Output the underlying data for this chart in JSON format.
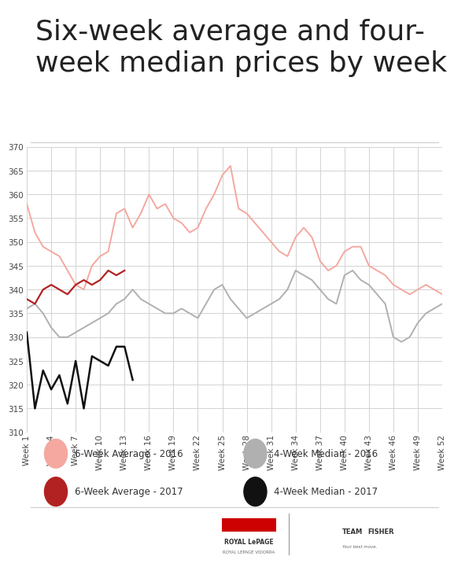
{
  "title": "Six-week average and four-\nweek median prices by week",
  "title_fontsize": 26,
  "ylim": [
    310,
    370
  ],
  "yticks": [
    310,
    315,
    320,
    325,
    330,
    335,
    340,
    345,
    350,
    355,
    360,
    365,
    370
  ],
  "xtick_labels": [
    "Week 1",
    "Week 4",
    "Week 7",
    "Week 10",
    "Week 13",
    "Week 16",
    "Week 19",
    "Week 22",
    "Week 25",
    "Week 28",
    "Week 31",
    "Week 34",
    "Week 37",
    "Week 40",
    "Week 43",
    "Week 46",
    "Week 49",
    "Week 52"
  ],
  "xtick_positions": [
    1,
    4,
    7,
    10,
    13,
    16,
    19,
    22,
    25,
    28,
    31,
    34,
    37,
    40,
    43,
    46,
    49,
    52
  ],
  "color_avg_2016": "#f4a8a0",
  "color_med_2016": "#b0b0b0",
  "color_avg_2017": "#b22222",
  "color_med_2017": "#111111",
  "legend_labels": [
    "6-Week Average - 2016",
    "4-Week Median - 2016",
    "6-Week Average - 2017",
    "4-Week Median - 2017"
  ],
  "avg_2016": [
    358,
    352,
    349,
    348,
    347,
    344,
    341,
    340,
    345,
    347,
    348,
    356,
    357,
    353,
    356,
    360,
    357,
    358,
    355,
    354,
    352,
    353,
    357,
    360,
    364,
    366,
    357,
    356,
    354,
    352,
    350,
    348,
    347,
    351,
    353,
    351,
    346,
    344,
    345,
    348,
    349,
    349,
    345,
    344,
    343,
    341,
    340,
    339,
    340,
    341,
    340,
    339
  ],
  "med_2016": [
    336,
    337,
    335,
    332,
    330,
    330,
    331,
    332,
    333,
    334,
    335,
    337,
    338,
    340,
    338,
    337,
    336,
    335,
    335,
    336,
    335,
    334,
    337,
    340,
    341,
    338,
    336,
    334,
    335,
    336,
    337,
    338,
    340,
    344,
    343,
    342,
    340,
    338,
    337,
    343,
    344,
    342,
    341,
    339,
    337,
    330,
    329,
    330,
    333,
    335,
    336,
    337
  ],
  "avg_2017": [
    338,
    337,
    340,
    341,
    340,
    339,
    341,
    342,
    341,
    342,
    344,
    343,
    344,
    null,
    null,
    null,
    null,
    null,
    null,
    null,
    null,
    null,
    null,
    null,
    null,
    null,
    null,
    null,
    null,
    null,
    null,
    null,
    null,
    null,
    null,
    null,
    null,
    null,
    null,
    null,
    null,
    null,
    null,
    null,
    null,
    null,
    null,
    null,
    null,
    null,
    null,
    null
  ],
  "med_2017": [
    331,
    315,
    323,
    319,
    322,
    316,
    325,
    315,
    326,
    325,
    324,
    328,
    328,
    321,
    null,
    null,
    null,
    null,
    null,
    null,
    null,
    null,
    null,
    null,
    null,
    null,
    null,
    null,
    null,
    null,
    null,
    null,
    null,
    null,
    null,
    null,
    null,
    null,
    null,
    null,
    null,
    null,
    null,
    null,
    null,
    null,
    null,
    null,
    null,
    null,
    null,
    null
  ],
  "background_color": "#ffffff",
  "grid_color": "#cccccc"
}
